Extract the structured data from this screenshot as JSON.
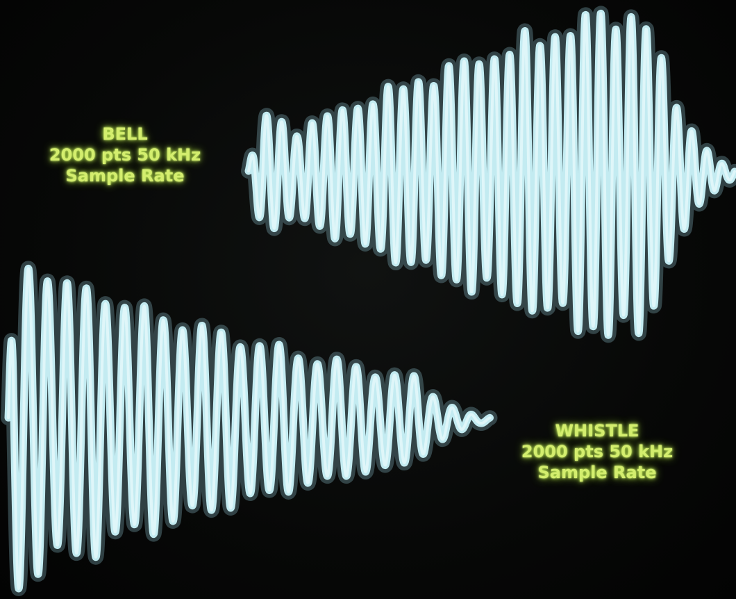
{
  "chart_data": {
    "type": "line",
    "grid": false,
    "series": [
      {
        "label_lines": [
          "BELL",
          "2000 pts 50 kHz",
          "Sample Rate"
        ],
        "points": 2000,
        "sample_rate": "50 kHz",
        "color": "#c3ebf1",
        "envelope": "rises to peak near the end, then decays abruptly",
        "cycles": 32
      },
      {
        "label_lines": [
          "WHISTLE",
          "2000 pts 50 kHz",
          "Sample Rate"
        ],
        "points": 2000,
        "sample_rate": "50 kHz",
        "color": "#c3ebf1",
        "envelope": "starts at maximum amplitude, then decays to near zero",
        "cycles": 25
      }
    ]
  },
  "labels": {
    "bell": {
      "line1": "BELL",
      "line2": "2000 pts 50 kHz",
      "line3": "Sample Rate"
    },
    "whistle": {
      "line1": "WHISTLE",
      "line2": "2000 pts 50 kHz",
      "line3": "Sample Rate"
    }
  },
  "colors": {
    "trace": "#c3ebf1",
    "label": "#d4ee6e",
    "background": "#070807"
  }
}
